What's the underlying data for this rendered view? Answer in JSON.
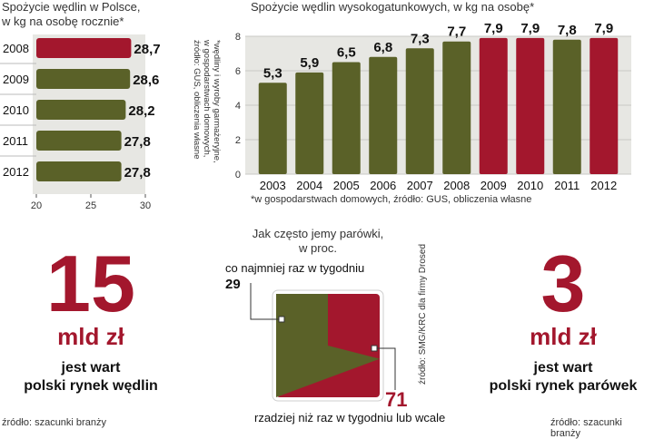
{
  "colors": {
    "green": "#5a6128",
    "red": "#a3172d",
    "panel_bg": "#e7e7e3"
  },
  "chart1": {
    "title_line1": "Spożycie wędlin w Polsce,",
    "title_line2": "w kg na osobę rocznie*",
    "side_note_line1": "*wędliny i wyroby garmażeryjne,",
    "side_note_line2": "w gospodarstwach domowych,",
    "side_note_line3": "źródło: GUS, obliczenia własne"
  },
  "chart2": {
    "title": "Spożycie wędlin wysokogatunkowych, w kg na osobę*",
    "footnote": "*w gospodarstwach domowych, źródło: GUS, obliczenia własne"
  },
  "pie": {
    "title_line1": "Jak często jemy parówki,",
    "title_line2": "w proc.",
    "label_a": "co najmniej raz w tygodniu",
    "value_a": "29",
    "label_b": "rzadziej niż raz w tygodniu lub wcale",
    "value_b": "71",
    "side_source": "źródło: SMG/KRC dla firmy Drosed"
  },
  "left_stat": {
    "number": "15",
    "unit": "mld zł",
    "caption_line1": "jest wart",
    "caption_line2": "polski rynek wędlin",
    "source": "źródło: szacunki branży"
  },
  "right_stat": {
    "number": "3",
    "unit": "mld zł",
    "caption_line1": "jest wart",
    "caption_line2": "polski rynek parówek",
    "source": "źródło: szacunki branży"
  },
  "chart_data": [
    {
      "type": "bar",
      "orientation": "horizontal",
      "categories": [
        "2008",
        "2009",
        "2010",
        "2011",
        "2012"
      ],
      "values": [
        28.7,
        28.6,
        28.2,
        27.8,
        27.8
      ],
      "value_labels": [
        "28,7",
        "28,6",
        "28,2",
        "27,8",
        "27,8"
      ],
      "highlight": [
        true,
        false,
        false,
        false,
        false
      ],
      "xlim": [
        20,
        30
      ],
      "xticks": [
        "20",
        "25",
        "30"
      ]
    },
    {
      "type": "bar",
      "categories": [
        "2003",
        "2004",
        "2005",
        "2006",
        "2007",
        "2008",
        "2009",
        "2010",
        "2011",
        "2012"
      ],
      "values": [
        5.3,
        5.9,
        6.5,
        6.8,
        7.3,
        7.7,
        7.9,
        7.9,
        7.8,
        7.9
      ],
      "value_labels": [
        "5,3",
        "5,9",
        "6,5",
        "6,8",
        "7,3",
        "7,7",
        "7,9",
        "7,9",
        "7,8",
        "7,9"
      ],
      "highlight": [
        false,
        false,
        false,
        false,
        false,
        false,
        true,
        true,
        false,
        true
      ],
      "ylim": [
        0,
        8
      ],
      "yticks": [
        "0",
        "2",
        "4",
        "6",
        "8"
      ],
      "grid": true
    },
    {
      "type": "pie",
      "labels": [
        "co najmniej raz w tygodniu",
        "rzadziej niż raz w tygodniu lub wcale"
      ],
      "values": [
        29,
        71
      ]
    }
  ]
}
